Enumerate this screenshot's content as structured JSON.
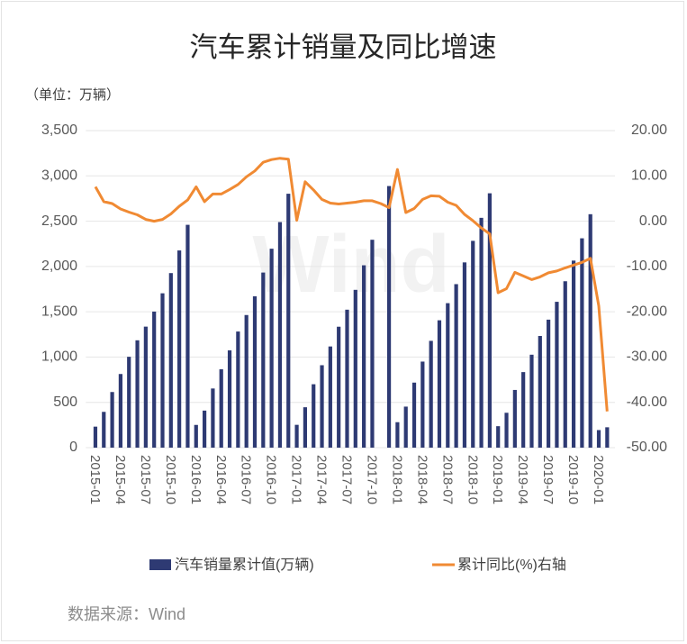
{
  "chart_data": {
    "type": "bar-line",
    "title": "汽车累计销量及同比增速",
    "subtitle": "（单位：万辆）",
    "source": "数据来源：Wind",
    "watermark": "Wind",
    "categories": [
      "2015-01",
      null,
      null,
      "2015-04",
      null,
      null,
      "2015-07",
      null,
      null,
      "2015-10",
      null,
      null,
      "2016-01",
      null,
      null,
      "2016-04",
      null,
      null,
      "2016-07",
      null,
      null,
      "2016-10",
      null,
      null,
      "2017-01",
      null,
      null,
      "2017-04",
      null,
      null,
      "2017-07",
      null,
      null,
      "2017-10",
      null,
      null,
      "2018-01",
      null,
      null,
      "2018-04",
      null,
      null,
      "2018-07",
      null,
      null,
      "2018-10",
      null,
      null,
      "2019-01",
      null,
      null,
      "2019-04",
      null,
      null,
      "2019-07",
      null,
      null,
      "2019-10",
      null,
      null,
      "2020-01",
      null
    ],
    "series": [
      {
        "name": "汽车销量累计值(万辆)",
        "type": "bar",
        "color": "#2e3a73",
        "values": [
          232,
          395,
          614,
          813,
          1003,
          1185,
          1336,
          1502,
          1704,
          1927,
          2177,
          2460,
          251,
          409,
          653,
          865,
          1074,
          1282,
          1464,
          1671,
          1933,
          2196,
          2490,
          2803,
          252,
          446,
          700,
          910,
          1117,
          1335,
          1523,
          1742,
          2013,
          2295,
          null,
          2888,
          281,
          453,
          718,
          950,
          1179,
          1406,
          1595,
          1805,
          2045,
          2283,
          2537,
          2808,
          237,
          385,
          637,
          834,
          1026,
          1233,
          1413,
          1610,
          1837,
          2065,
          2311,
          2577,
          194,
          225
        ]
      },
      {
        "name": "累计同比(%)右轴",
        "type": "line",
        "axis": "y2",
        "color": "#f08a33",
        "values": [
          7.6,
          4.3,
          3.9,
          2.7,
          2.0,
          1.4,
          0.4,
          0.0,
          0.4,
          1.6,
          3.3,
          4.7,
          7.6,
          4.3,
          6.0,
          6.0,
          7.0,
          8.1,
          9.8,
          11.1,
          13.0,
          13.6,
          13.9,
          13.7,
          0.2,
          8.7,
          6.9,
          4.8,
          4.0,
          3.8,
          4.0,
          4.2,
          4.5,
          4.5,
          3.9,
          3.0,
          11.4,
          1.9,
          2.8,
          4.8,
          5.6,
          5.5,
          4.2,
          3.5,
          1.5,
          0.1,
          -1.5,
          -2.8,
          -15.8,
          -14.9,
          -11.3,
          -12.1,
          -12.9,
          -12.3,
          -11.4,
          -11.0,
          -10.3,
          -9.7,
          -9.1,
          -8.2,
          -18.7,
          -42.0
        ]
      }
    ],
    "ylim": [
      0,
      3500
    ],
    "yticks": [
      0,
      500,
      {
        "value": 1000,
        "label": "1,000"
      },
      {
        "value": 1500,
        "label": "1,500"
      },
      {
        "value": 2000,
        "label": "2,000"
      },
      {
        "value": 2500,
        "label": "2,500"
      },
      {
        "value": 3000,
        "label": "3,000"
      },
      {
        "value": 3500,
        "label": "3,500"
      }
    ],
    "y2lim": [
      -50,
      20
    ],
    "y2ticks": [
      {
        "value": -50,
        "label": "-50.00"
      },
      {
        "value": -40,
        "label": "-40.00"
      },
      {
        "value": -30,
        "label": "-30.00"
      },
      {
        "value": -20,
        "label": "-20.00"
      },
      {
        "value": -10,
        "label": "-10.00"
      },
      {
        "value": 0,
        "label": "0.00"
      },
      {
        "value": 10,
        "label": "10.00"
      },
      {
        "value": 20,
        "label": "20.00"
      }
    ],
    "grid": true
  }
}
